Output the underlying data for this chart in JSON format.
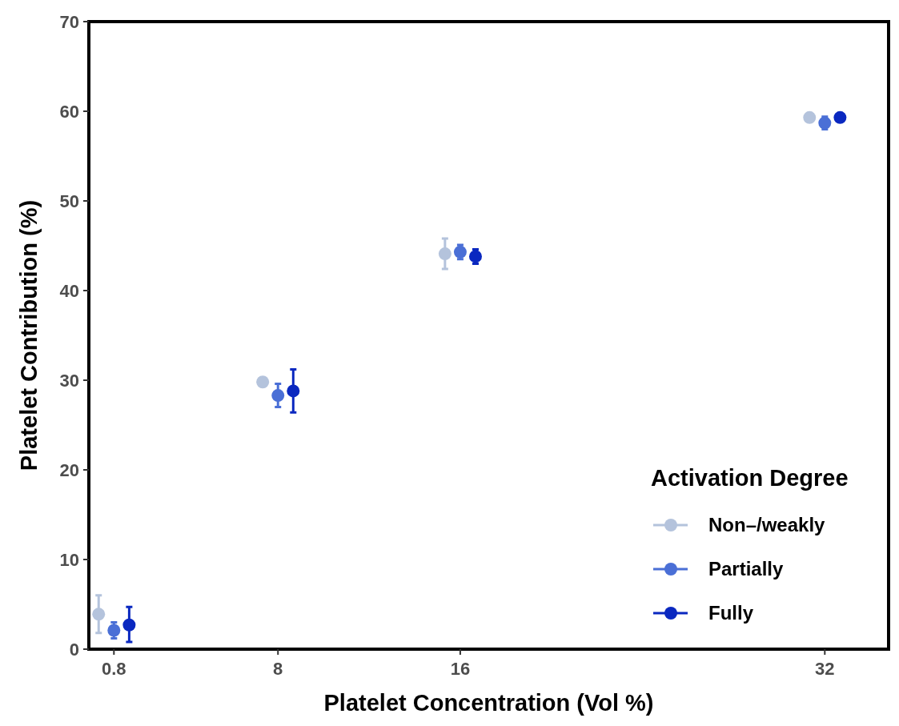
{
  "chart_data": {
    "type": "scatter",
    "xlabel": "Platelet Concentration (Vol %)",
    "ylabel": "Platelet Contribution (%)",
    "legend_title": "Activation Degree",
    "x": [
      0.8,
      8,
      16,
      32
    ],
    "xlim": [
      -0.3,
      34.8
    ],
    "xticks": [
      0.8,
      8,
      16,
      32
    ],
    "ylim": [
      0,
      70
    ],
    "yticks": [
      0,
      10,
      20,
      30,
      40,
      50,
      60,
      70
    ],
    "grid": false,
    "legend": "bottom right",
    "marker": "circle",
    "series": [
      {
        "name": "Non–/weakly",
        "color": "#b4c3dc",
        "x": [
          0.13,
          7.33,
          15.33,
          31.33
        ],
        "values": [
          3.9,
          29.8,
          44.1,
          59.3
        ],
        "errors": [
          [
            1.8,
            6.0
          ],
          [
            29.4,
            30.3
          ],
          [
            42.4,
            45.8
          ],
          null
        ]
      },
      {
        "name": "Partially",
        "color": "#4a6fd6",
        "values": [
          2.1,
          28.3,
          44.3,
          58.7
        ],
        "errors": [
          [
            1.2,
            3.0
          ],
          [
            27.0,
            29.6
          ],
          [
            43.5,
            45.1
          ],
          [
            58.0,
            59.4
          ]
        ]
      },
      {
        "name": "Fully",
        "color": "#0a28c0",
        "x": [
          1.47,
          8.67,
          16.67,
          32.67
        ],
        "values": [
          2.7,
          28.8,
          43.8,
          59.3
        ],
        "errors": [
          [
            0.8,
            4.7
          ],
          [
            26.4,
            31.2
          ],
          [
            43.0,
            44.6
          ],
          null
        ]
      }
    ]
  }
}
